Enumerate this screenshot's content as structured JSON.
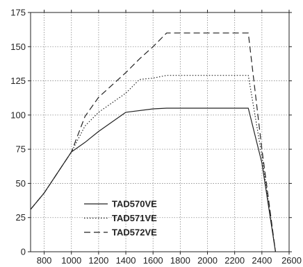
{
  "chart_data": {
    "type": "line",
    "title": "",
    "xlabel": "",
    "ylabel": "",
    "xlim": [
      700,
      2600
    ],
    "ylim": [
      0,
      175
    ],
    "xticks": [
      800,
      1000,
      1200,
      1400,
      1600,
      1800,
      2000,
      2200,
      2400,
      2600
    ],
    "yticks": [
      0,
      25,
      50,
      75,
      100,
      125,
      150,
      175
    ],
    "grid": true,
    "legend_position": "lower-left",
    "series": [
      {
        "name": "TAD570VE",
        "line_style": "solid",
        "color": "#222222",
        "points": [
          [
            700,
            31
          ],
          [
            800,
            43
          ],
          [
            1000,
            73
          ],
          [
            1100,
            80
          ],
          [
            1200,
            88
          ],
          [
            1400,
            102
          ],
          [
            1600,
            104.5
          ],
          [
            1700,
            105
          ],
          [
            2300,
            105
          ],
          [
            2400,
            65
          ],
          [
            2500,
            0
          ]
        ]
      },
      {
        "name": "TAD571VE",
        "line_style": "dotted",
        "color": "#222222",
        "points": [
          [
            700,
            31
          ],
          [
            800,
            43
          ],
          [
            1000,
            73
          ],
          [
            1100,
            92
          ],
          [
            1200,
            102
          ],
          [
            1400,
            116
          ],
          [
            1500,
            126
          ],
          [
            1600,
            127
          ],
          [
            1700,
            129
          ],
          [
            2300,
            129
          ],
          [
            2400,
            70
          ],
          [
            2500,
            0
          ]
        ]
      },
      {
        "name": "TAD572VE",
        "line_style": "dashed",
        "color": "#222222",
        "points": [
          [
            700,
            31
          ],
          [
            800,
            43
          ],
          [
            1000,
            73
          ],
          [
            1100,
            99
          ],
          [
            1200,
            113
          ],
          [
            1400,
            131
          ],
          [
            1500,
            141
          ],
          [
            1600,
            150
          ],
          [
            1700,
            160
          ],
          [
            2300,
            160
          ],
          [
            2400,
            75
          ],
          [
            2500,
            0
          ]
        ]
      }
    ]
  }
}
